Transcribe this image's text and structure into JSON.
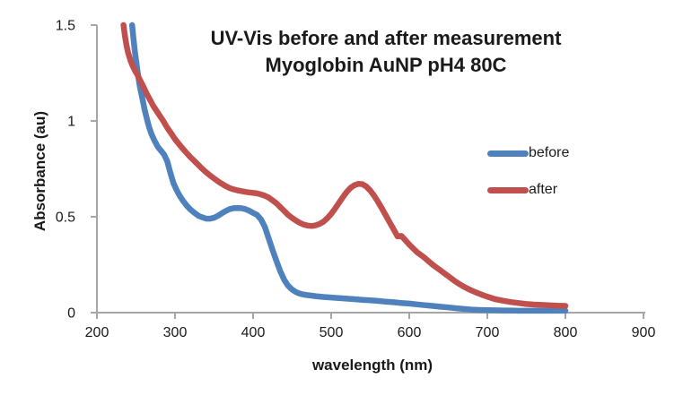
{
  "window": {
    "background": "#FFFFFF"
  },
  "chart_data": {
    "type": "line",
    "title_line1": "UV-Vis before and after measurement",
    "title_line2": "Myoglobin AuNP pH4 80C",
    "xlabel": "wavelength (nm)",
    "ylabel": "Absorbance (au)",
    "xlim": [
      200,
      900
    ],
    "ylim": [
      0,
      1.5
    ],
    "xticks": [
      200,
      300,
      400,
      500,
      600,
      700,
      800,
      900
    ],
    "yticks": [
      {
        "value": 0,
        "label": "0"
      },
      {
        "value": 0.5,
        "label": "0.5"
      },
      {
        "value": 1,
        "label": "1"
      },
      {
        "value": 1.5,
        "label": "1.5"
      }
    ],
    "grid": false,
    "legend_position": "center-right",
    "axis_color": "#A6A6A6",
    "text_color": "#1a1a1a",
    "line_width": 6.5,
    "series": [
      {
        "name": "before",
        "color": "#4F81BD",
        "points": [
          [
            245,
            1.5
          ],
          [
            247,
            1.42
          ],
          [
            249,
            1.35
          ],
          [
            251,
            1.29
          ],
          [
            253,
            1.23
          ],
          [
            255,
            1.18
          ],
          [
            258,
            1.12
          ],
          [
            261,
            1.06
          ],
          [
            264,
            1.01
          ],
          [
            267,
            0.965
          ],
          [
            270,
            0.93
          ],
          [
            274,
            0.895
          ],
          [
            278,
            0.865
          ],
          [
            282,
            0.845
          ],
          [
            286,
            0.825
          ],
          [
            290,
            0.79
          ],
          [
            294,
            0.73
          ],
          [
            298,
            0.675
          ],
          [
            302,
            0.64
          ],
          [
            306,
            0.61
          ],
          [
            310,
            0.585
          ],
          [
            315,
            0.558
          ],
          [
            320,
            0.537
          ],
          [
            325,
            0.52
          ],
          [
            330,
            0.505
          ],
          [
            335,
            0.497
          ],
          [
            340,
            0.49
          ],
          [
            345,
            0.49
          ],
          [
            350,
            0.495
          ],
          [
            355,
            0.505
          ],
          [
            360,
            0.518
          ],
          [
            365,
            0.53
          ],
          [
            370,
            0.54
          ],
          [
            375,
            0.545
          ],
          [
            380,
            0.546
          ],
          [
            385,
            0.545
          ],
          [
            390,
            0.54
          ],
          [
            395,
            0.532
          ],
          [
            400,
            0.52
          ],
          [
            405,
            0.51
          ],
          [
            410,
            0.487
          ],
          [
            415,
            0.447
          ],
          [
            420,
            0.387
          ],
          [
            425,
            0.325
          ],
          [
            430,
            0.268
          ],
          [
            435,
            0.215
          ],
          [
            440,
            0.17
          ],
          [
            445,
            0.14
          ],
          [
            450,
            0.12
          ],
          [
            455,
            0.107
          ],
          [
            460,
            0.099
          ],
          [
            465,
            0.094
          ],
          [
            470,
            0.091
          ],
          [
            480,
            0.086
          ],
          [
            490,
            0.082
          ],
          [
            500,
            0.079
          ],
          [
            510,
            0.076
          ],
          [
            520,
            0.073
          ],
          [
            530,
            0.07
          ],
          [
            540,
            0.067
          ],
          [
            550,
            0.064
          ],
          [
            560,
            0.061
          ],
          [
            570,
            0.057
          ],
          [
            580,
            0.054
          ],
          [
            590,
            0.05
          ],
          [
            600,
            0.047
          ],
          [
            610,
            0.043
          ],
          [
            620,
            0.039
          ],
          [
            630,
            0.035
          ],
          [
            640,
            0.031
          ],
          [
            650,
            0.027
          ],
          [
            660,
            0.023
          ],
          [
            670,
            0.019
          ],
          [
            680,
            0.016
          ],
          [
            690,
            0.014
          ],
          [
            700,
            0.013
          ],
          [
            710,
            0.012
          ],
          [
            720,
            0.011
          ],
          [
            730,
            0.011
          ],
          [
            740,
            0.01
          ],
          [
            750,
            0.01
          ],
          [
            760,
            0.01
          ],
          [
            770,
            0.01
          ],
          [
            780,
            0.01
          ],
          [
            790,
            0.01
          ],
          [
            800,
            0.01
          ]
        ]
      },
      {
        "name": "after",
        "color": "#C0504D",
        "points": [
          [
            234,
            1.5
          ],
          [
            236,
            1.44
          ],
          [
            238,
            1.39
          ],
          [
            240,
            1.355
          ],
          [
            243,
            1.315
          ],
          [
            246,
            1.285
          ],
          [
            249,
            1.26
          ],
          [
            252,
            1.24
          ],
          [
            255,
            1.215
          ],
          [
            258,
            1.19
          ],
          [
            261,
            1.165
          ],
          [
            264,
            1.14
          ],
          [
            268,
            1.11
          ],
          [
            272,
            1.08
          ],
          [
            276,
            1.055
          ],
          [
            280,
            1.03
          ],
          [
            285,
            1.0
          ],
          [
            290,
            0.965
          ],
          [
            295,
            0.935
          ],
          [
            300,
            0.905
          ],
          [
            305,
            0.88
          ],
          [
            310,
            0.855
          ],
          [
            315,
            0.832
          ],
          [
            320,
            0.81
          ],
          [
            325,
            0.79
          ],
          [
            330,
            0.77
          ],
          [
            335,
            0.75
          ],
          [
            340,
            0.732
          ],
          [
            345,
            0.715
          ],
          [
            350,
            0.7
          ],
          [
            355,
            0.685
          ],
          [
            360,
            0.672
          ],
          [
            365,
            0.66
          ],
          [
            370,
            0.65
          ],
          [
            375,
            0.643
          ],
          [
            380,
            0.638
          ],
          [
            385,
            0.634
          ],
          [
            390,
            0.63
          ],
          [
            395,
            0.627
          ],
          [
            400,
            0.625
          ],
          [
            405,
            0.622
          ],
          [
            410,
            0.617
          ],
          [
            415,
            0.61
          ],
          [
            420,
            0.6
          ],
          [
            425,
            0.585
          ],
          [
            430,
            0.57
          ],
          [
            435,
            0.55
          ],
          [
            440,
            0.53
          ],
          [
            445,
            0.51
          ],
          [
            450,
            0.494
          ],
          [
            455,
            0.48
          ],
          [
            460,
            0.468
          ],
          [
            465,
            0.459
          ],
          [
            470,
            0.454
          ],
          [
            475,
            0.452
          ],
          [
            480,
            0.455
          ],
          [
            485,
            0.462
          ],
          [
            490,
            0.474
          ],
          [
            495,
            0.492
          ],
          [
            500,
            0.515
          ],
          [
            505,
            0.543
          ],
          [
            510,
            0.573
          ],
          [
            515,
            0.603
          ],
          [
            520,
            0.63
          ],
          [
            525,
            0.652
          ],
          [
            530,
            0.665
          ],
          [
            535,
            0.672
          ],
          [
            540,
            0.67
          ],
          [
            545,
            0.658
          ],
          [
            550,
            0.637
          ],
          [
            555,
            0.61
          ],
          [
            560,
            0.578
          ],
          [
            565,
            0.543
          ],
          [
            570,
            0.507
          ],
          [
            575,
            0.47
          ],
          [
            580,
            0.434
          ],
          [
            585,
            0.398
          ],
          [
            590,
            0.4
          ],
          [
            595,
            0.378
          ],
          [
            600,
            0.355
          ],
          [
            605,
            0.335
          ],
          [
            610,
            0.315
          ],
          [
            615,
            0.3
          ],
          [
            620,
            0.285
          ],
          [
            625,
            0.267
          ],
          [
            630,
            0.25
          ],
          [
            635,
            0.235
          ],
          [
            640,
            0.22
          ],
          [
            645,
            0.205
          ],
          [
            650,
            0.19
          ],
          [
            655,
            0.175
          ],
          [
            660,
            0.16
          ],
          [
            665,
            0.147
          ],
          [
            670,
            0.135
          ],
          [
            675,
            0.125
          ],
          [
            680,
            0.115
          ],
          [
            685,
            0.106
          ],
          [
            690,
            0.098
          ],
          [
            695,
            0.09
          ],
          [
            700,
            0.083
          ],
          [
            710,
            0.07
          ],
          [
            720,
            0.062
          ],
          [
            730,
            0.055
          ],
          [
            740,
            0.05
          ],
          [
            750,
            0.045
          ],
          [
            760,
            0.042
          ],
          [
            770,
            0.04
          ],
          [
            780,
            0.038
          ],
          [
            790,
            0.036
          ],
          [
            800,
            0.035
          ]
        ]
      }
    ]
  },
  "plot_geometry_note": "",
  "legend": {
    "items": [
      {
        "label": "before"
      },
      {
        "label": "after"
      }
    ]
  }
}
